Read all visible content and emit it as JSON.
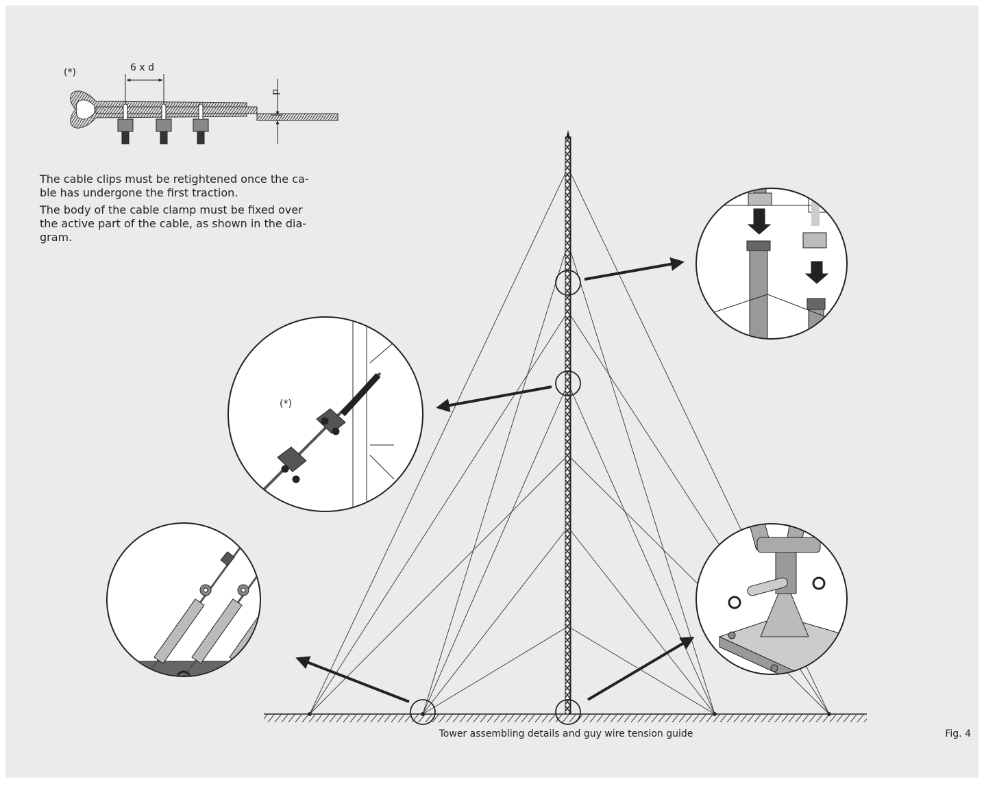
{
  "clip_detail": {
    "note_mark": "(*)",
    "spacing_label": "6 x d",
    "diameter_label": "d"
  },
  "instructions": [
    [
      "The cable clips must be retightened once the ca-",
      "ble has undergone the first traction."
    ],
    [
      "The body of the cable clamp must be fixed over",
      "the active part of the cable, as shown in the dia-",
      "gram."
    ]
  ],
  "clamp_detail": {
    "note_mark": "(*)"
  },
  "caption": "Tower assembling details and guy wire tension guide",
  "figure_label": "Fig. 4"
}
